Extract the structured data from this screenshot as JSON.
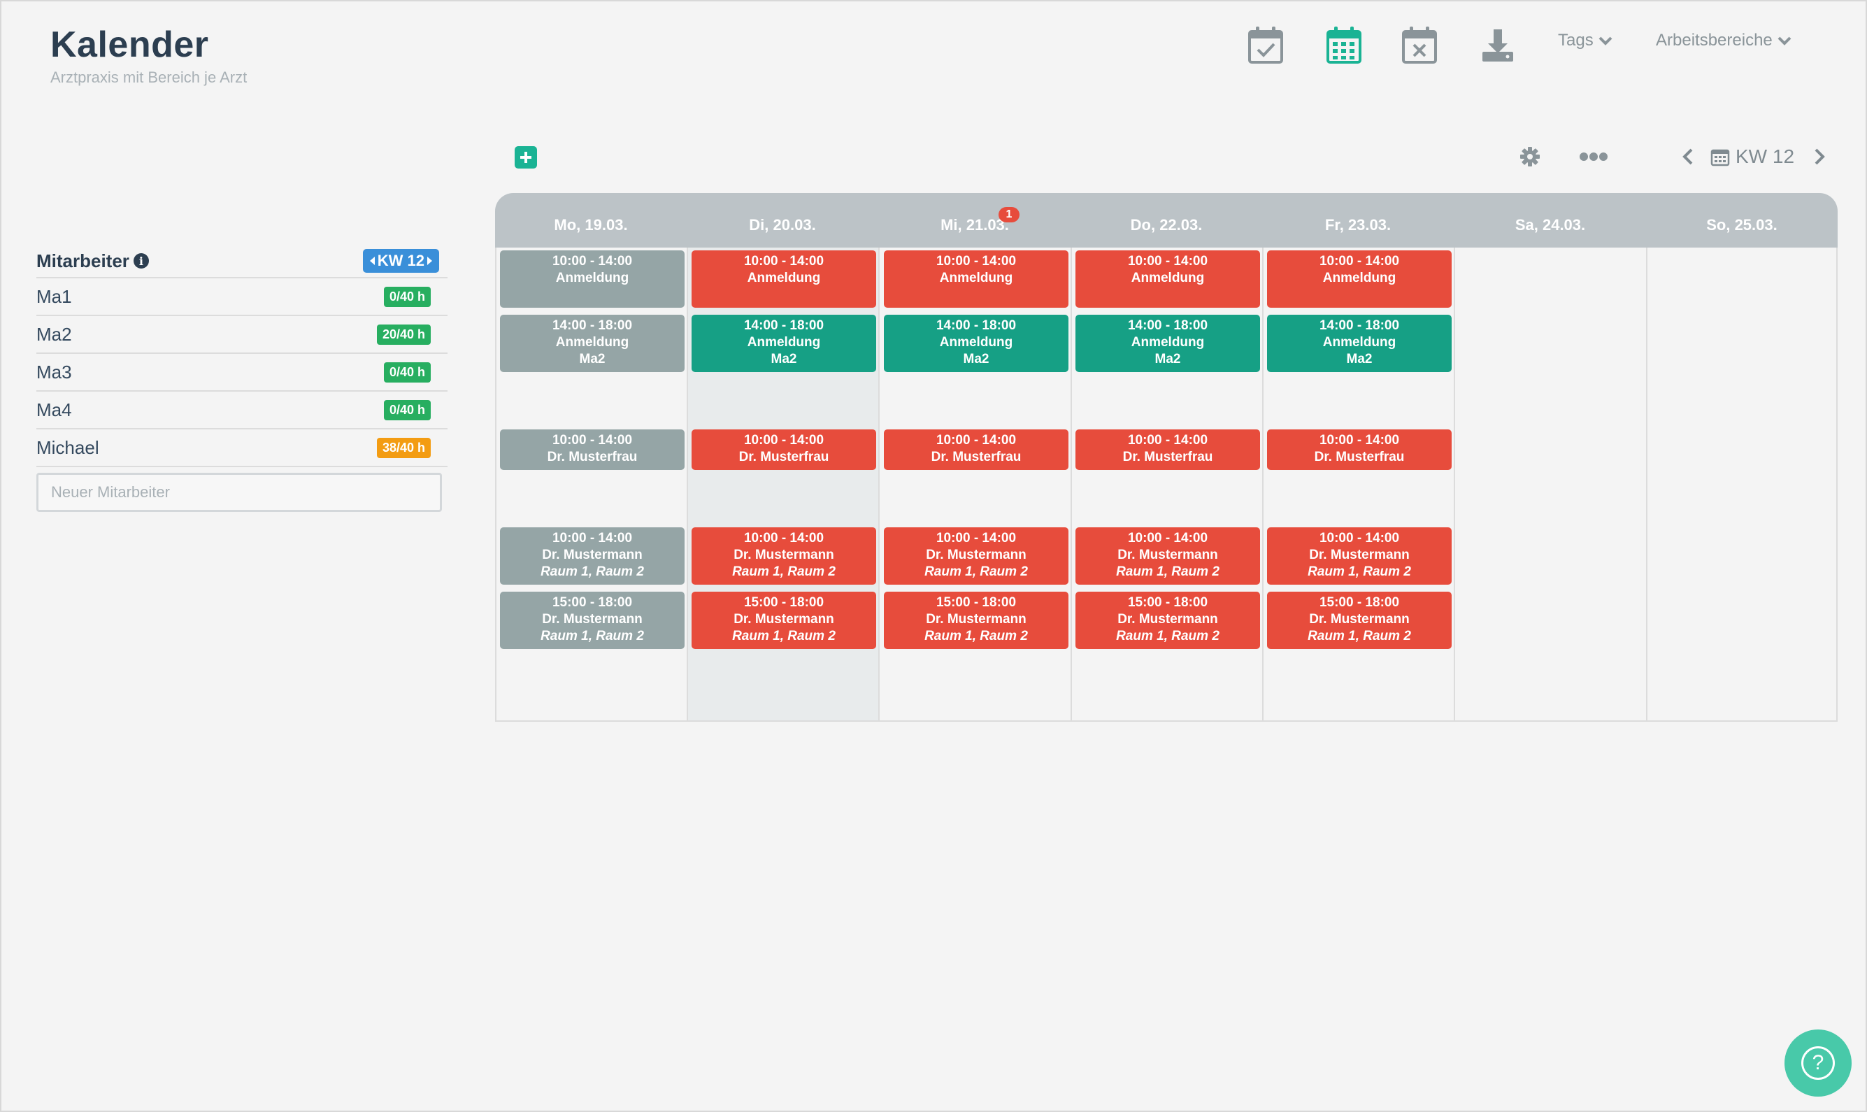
{
  "header": {
    "title": "Kalender",
    "subtitle": "Arztpraxis mit Bereich je Arzt",
    "icons": [
      "calendar-check-icon",
      "calendar-grid-icon",
      "calendar-remove-icon",
      "download-icon"
    ],
    "tags_label": "Tags",
    "workspaces_label": "Arbeitsbereiche"
  },
  "toolbar": {
    "week_label": "KW 12",
    "icons": [
      "add-icon",
      "gear-icon",
      "more-icon",
      "chevron-left-icon",
      "calendar-icon",
      "chevron-right-icon"
    ]
  },
  "sidebar": {
    "heading": "Mitarbeiter",
    "week_badge": "KW 12",
    "employees": [
      {
        "name": "Ma1",
        "hours": "0/40 h",
        "color": "#27ae60"
      },
      {
        "name": "Ma2",
        "hours": "20/40 h",
        "color": "#27ae60"
      },
      {
        "name": "Ma3",
        "hours": "0/40 h",
        "color": "#27ae60"
      },
      {
        "name": "Ma4",
        "hours": "0/40 h",
        "color": "#27ae60"
      },
      {
        "name": "Michael",
        "hours": "38/40 h",
        "color": "#f39c12"
      }
    ],
    "new_placeholder": "Neuer Mitarbeiter"
  },
  "calendar": {
    "days": [
      {
        "label": "Mo, 19.03."
      },
      {
        "label": "Di, 20.03."
      },
      {
        "label": "Mi, 21.03.",
        "badge": "1"
      },
      {
        "label": "Do, 22.03."
      },
      {
        "label": "Fr, 23.03."
      },
      {
        "label": "Sa, 24.03."
      },
      {
        "label": "So, 25.03."
      }
    ],
    "colors": {
      "past": "#95a5a6",
      "open": "#e74c3c",
      "filled": "#16a085"
    },
    "shift_rows": [
      {
        "time": "10:00 - 14:00",
        "name": "Anmeldung",
        "staff": "",
        "rooms": "",
        "status": [
          "grey",
          "red",
          "red",
          "red",
          "red"
        ]
      },
      {
        "time": "14:00 - 18:00",
        "name": "Anmeldung",
        "staff": "Ma2",
        "rooms": "",
        "status": [
          "grey",
          "green",
          "green",
          "green",
          "green"
        ]
      },
      {
        "time": "10:00 - 14:00",
        "name": "Dr. Musterfrau",
        "staff": "",
        "rooms": "",
        "status": [
          "grey",
          "red",
          "red",
          "red",
          "red"
        ]
      },
      {
        "time": "10:00 - 14:00",
        "name": "Dr. Mustermann",
        "staff": "",
        "rooms": "Raum 1, Raum 2",
        "status": [
          "grey",
          "red",
          "red",
          "red",
          "red"
        ]
      },
      {
        "time": "15:00 - 18:00",
        "name": "Dr. Mustermann",
        "staff": "",
        "rooms": "Raum 1, Raum 2",
        "status": [
          "grey",
          "red",
          "red",
          "red",
          "red"
        ]
      }
    ]
  },
  "help_icon": "question-icon"
}
